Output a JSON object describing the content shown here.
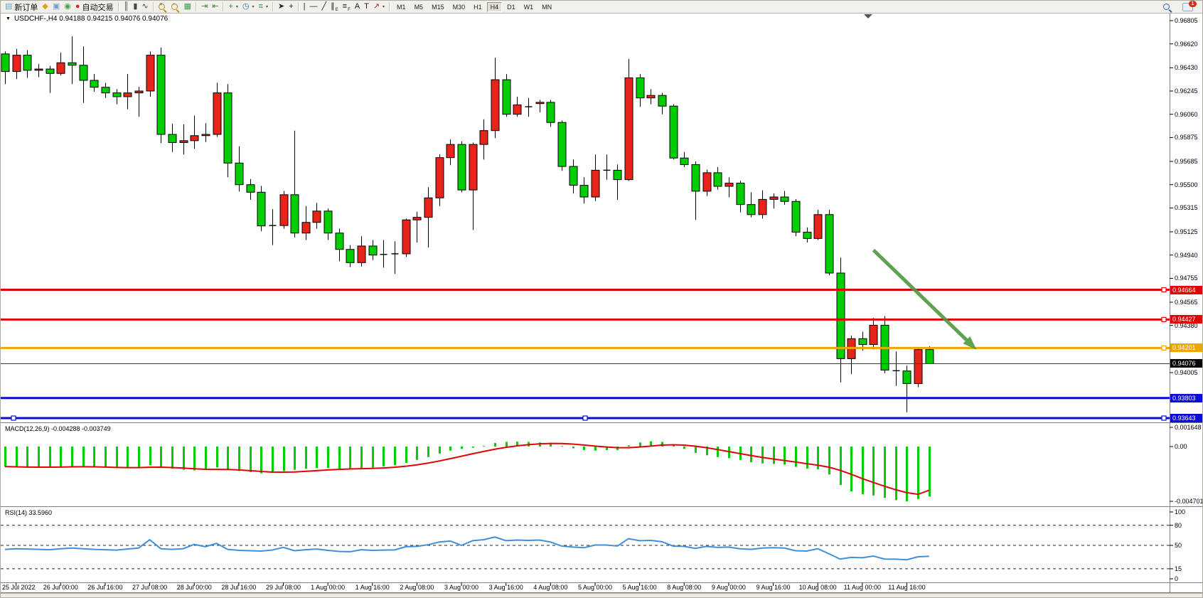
{
  "toolbar": {
    "new_order_label": "新订单",
    "autotrade_label": "自动交易",
    "groups": [
      {
        "items": [
          {
            "name": "new-order-button",
            "icon": "new-order-icon",
            "label": "新订单"
          },
          {
            "name": "history-center-button",
            "icon": "history-icon"
          },
          {
            "name": "market-watch-button",
            "icon": "window-icon"
          },
          {
            "name": "signals-button",
            "icon": "signal-icon"
          },
          {
            "name": "autotrade-button",
            "icon": "autotrade-icon",
            "label": "自动交易"
          }
        ]
      },
      {
        "items": [
          {
            "name": "bar-chart-button",
            "icon": "bars-chart-icon"
          },
          {
            "name": "candle-chart-button",
            "icon": "candles-chart-icon"
          },
          {
            "name": "line-chart-button",
            "icon": "line-chart-icon"
          }
        ]
      },
      {
        "items": [
          {
            "name": "zoom-in-button",
            "icon": "zoom-in-icon"
          },
          {
            "name": "zoom-out-button",
            "icon": "zoom-out-icon"
          },
          {
            "name": "tile-windows-button",
            "icon": "tile-windows-icon"
          }
        ]
      },
      {
        "items": [
          {
            "name": "auto-scroll-button",
            "icon": "auto-scroll-icon"
          },
          {
            "name": "chart-shift-button",
            "icon": "chart-shift-icon"
          }
        ]
      },
      {
        "items": [
          {
            "name": "indicators-button",
            "icon": "indicators-icon",
            "dropdown": true
          },
          {
            "name": "periods-button",
            "icon": "periods-icon",
            "dropdown": true
          },
          {
            "name": "templates-button",
            "icon": "templates-icon",
            "dropdown": true
          }
        ]
      },
      {
        "items": [
          {
            "name": "cursor-button",
            "icon": "cursor-icon"
          },
          {
            "name": "crosshair-button",
            "icon": "crosshair-icon"
          }
        ]
      },
      {
        "items": [
          {
            "name": "vertical-line-button",
            "icon": "vertical-line-icon"
          },
          {
            "name": "horizontal-line-button",
            "icon": "horizontal-line-icon"
          },
          {
            "name": "trendline-button",
            "icon": "trendline-icon"
          },
          {
            "name": "equidistant-channel-button",
            "icon": "channel-icon",
            "sub": "E"
          },
          {
            "name": "fibonacci-button",
            "icon": "fibonacci-icon",
            "sub": "F"
          },
          {
            "name": "text-button",
            "icon": "text-icon"
          },
          {
            "name": "text-label-button",
            "icon": "text-label-icon"
          },
          {
            "name": "arrows-button",
            "icon": "arrows-icon",
            "dropdown": true
          }
        ]
      }
    ],
    "timeframes": [
      "M1",
      "M5",
      "M15",
      "M30",
      "H1",
      "H4",
      "D1",
      "W1",
      "MN"
    ],
    "active_timeframe": "H4",
    "right_items": [
      {
        "name": "search-button",
        "icon": "search-icon"
      },
      {
        "name": "notifications-button",
        "icon": "chat-icon",
        "badge": "1"
      }
    ]
  },
  "chart": {
    "title": "USDCHF-,H4 0.94188 0.94215 0.94076 0.94076",
    "symbol": "USDCHF-",
    "period": "H4",
    "open": "0.94188",
    "high": "0.94215",
    "low": "0.94076",
    "close": "0.94076"
  },
  "chart_data": [
    {
      "type": "candlestick",
      "symbol": "USDCHF-",
      "timeframe": "H4",
      "up_color": "#e8241a",
      "down_color": "#00ce00",
      "x_labels": [
        "25 Jul 2022",
        "26 Jul 00:00",
        "26 Jul 16:00",
        "27 Jul 08:00",
        "28 Jul 00:00",
        "28 Jul 16:00",
        "29 Jul 08:00",
        "1 Aug 00:00",
        "1 Aug 16:00",
        "2 Aug 08:00",
        "3 Aug 00:00",
        "3 Aug 16:00",
        "4 Aug 08:00",
        "5 Aug 00:00",
        "5 Aug 16:00",
        "8 Aug 08:00",
        "9 Aug 00:00",
        "9 Aug 16:00",
        "10 Aug 08:00",
        "11 Aug 00:00",
        "11 Aug 16:00"
      ],
      "y_ticks": [
        0.96805,
        0.9662,
        0.9643,
        0.96245,
        0.9606,
        0.95875,
        0.95685,
        0.955,
        0.95315,
        0.95125,
        0.9494,
        0.94755,
        0.94565,
        0.9438,
        0.94005
      ],
      "ohlc": [
        [
          0.9654,
          0.9656,
          0.963,
          0.964
        ],
        [
          0.964,
          0.9658,
          0.9634,
          0.9653
        ],
        [
          0.9653,
          0.9657,
          0.9635,
          0.9641
        ],
        [
          0.9641,
          0.9646,
          0.96355,
          0.9642
        ],
        [
          0.9642,
          0.96445,
          0.9623,
          0.96385
        ],
        [
          0.96385,
          0.9655,
          0.9637,
          0.9647
        ],
        [
          0.9647,
          0.9668,
          0.963,
          0.9645
        ],
        [
          0.9645,
          0.966,
          0.9615,
          0.9633
        ],
        [
          0.9633,
          0.9638,
          0.9624,
          0.96275
        ],
        [
          0.96275,
          0.9631,
          0.9619,
          0.9623
        ],
        [
          0.9623,
          0.9626,
          0.9614,
          0.962
        ],
        [
          0.962,
          0.9638,
          0.961,
          0.9623
        ],
        [
          0.9623,
          0.9628,
          0.9604,
          0.96245
        ],
        [
          0.96245,
          0.9656,
          0.962,
          0.9653
        ],
        [
          0.9653,
          0.9659,
          0.9583,
          0.959
        ],
        [
          0.959,
          0.95985,
          0.9576,
          0.95835
        ],
        [
          0.95835,
          0.9598,
          0.9574,
          0.9585
        ],
        [
          0.9585,
          0.9605,
          0.95785,
          0.9589
        ],
        [
          0.9589,
          0.9599,
          0.9584,
          0.959
        ],
        [
          0.959,
          0.9631,
          0.9588,
          0.9623
        ],
        [
          0.9623,
          0.963,
          0.9556,
          0.95672
        ],
        [
          0.95672,
          0.95805,
          0.95445,
          0.955
        ],
        [
          0.955,
          0.95545,
          0.9538,
          0.9544
        ],
        [
          0.9544,
          0.9549,
          0.9513,
          0.95172
        ],
        [
          0.95175,
          0.95305,
          0.9502,
          0.95175
        ],
        [
          0.95175,
          0.9545,
          0.9515,
          0.9542
        ],
        [
          0.9542,
          0.9593,
          0.9508,
          0.95115
        ],
        [
          0.95115,
          0.9533,
          0.9506,
          0.952
        ],
        [
          0.952,
          0.95355,
          0.9515,
          0.9529
        ],
        [
          0.9529,
          0.9531,
          0.9506,
          0.95115
        ],
        [
          0.95115,
          0.9515,
          0.9489,
          0.94985
        ],
        [
          0.94985,
          0.9502,
          0.94845,
          0.9488
        ],
        [
          0.9488,
          0.9509,
          0.9485,
          0.95012
        ],
        [
          0.95012,
          0.9506,
          0.949,
          0.9494
        ],
        [
          0.94945,
          0.9506,
          0.9484,
          0.94945
        ],
        [
          0.9495,
          0.9505,
          0.9479,
          0.9495
        ],
        [
          0.9495,
          0.9523,
          0.94925,
          0.9522
        ],
        [
          0.9522,
          0.95285,
          0.9504,
          0.9524
        ],
        [
          0.9524,
          0.9548,
          0.95,
          0.95395
        ],
        [
          0.95395,
          0.9574,
          0.9533,
          0.95715
        ],
        [
          0.95715,
          0.9586,
          0.95655,
          0.9582
        ],
        [
          0.9582,
          0.95845,
          0.9544,
          0.95458
        ],
        [
          0.95458,
          0.95835,
          0.9514,
          0.9582
        ],
        [
          0.9582,
          0.9602,
          0.957,
          0.9593
        ],
        [
          0.9593,
          0.9651,
          0.9587,
          0.96335
        ],
        [
          0.96335,
          0.9638,
          0.9604,
          0.9606
        ],
        [
          0.9606,
          0.962,
          0.9604,
          0.96135
        ],
        [
          0.9612,
          0.9619,
          0.9604,
          0.9612
        ],
        [
          0.96145,
          0.96175,
          0.96075,
          0.96155
        ],
        [
          0.96155,
          0.96175,
          0.9596,
          0.95995
        ],
        [
          0.95995,
          0.9601,
          0.9561,
          0.95645
        ],
        [
          0.95645,
          0.957,
          0.9543,
          0.95495
        ],
        [
          0.95495,
          0.9556,
          0.9535,
          0.95402
        ],
        [
          0.95402,
          0.9574,
          0.9537,
          0.95615
        ],
        [
          0.95615,
          0.9574,
          0.9554,
          0.95615
        ],
        [
          0.95615,
          0.9566,
          0.9538,
          0.9554
        ],
        [
          0.9554,
          0.965,
          0.9553,
          0.9635
        ],
        [
          0.9635,
          0.9638,
          0.9612,
          0.9619
        ],
        [
          0.9619,
          0.9626,
          0.9614,
          0.9621
        ],
        [
          0.9621,
          0.9623,
          0.9606,
          0.96125
        ],
        [
          0.96125,
          0.9614,
          0.957,
          0.95712
        ],
        [
          0.95712,
          0.9576,
          0.9564,
          0.9566
        ],
        [
          0.9566,
          0.95685,
          0.9522,
          0.95448
        ],
        [
          0.95448,
          0.9562,
          0.9541,
          0.95595
        ],
        [
          0.95595,
          0.9564,
          0.9546,
          0.95487
        ],
        [
          0.95487,
          0.9556,
          0.954,
          0.95512
        ],
        [
          0.95512,
          0.9553,
          0.9528,
          0.95342
        ],
        [
          0.95342,
          0.9544,
          0.9524,
          0.95262
        ],
        [
          0.95262,
          0.95455,
          0.9523,
          0.95383
        ],
        [
          0.95383,
          0.9543,
          0.9531,
          0.95402
        ],
        [
          0.95402,
          0.9545,
          0.9534,
          0.95367
        ],
        [
          0.95367,
          0.95385,
          0.9509,
          0.95122
        ],
        [
          0.95122,
          0.9516,
          0.9504,
          0.95072
        ],
        [
          0.95072,
          0.953,
          0.9506,
          0.95262
        ],
        [
          0.95262,
          0.953,
          0.9478,
          0.94797
        ],
        [
          0.94797,
          0.9492,
          0.93927,
          0.94116
        ],
        [
          0.94116,
          0.943,
          0.93993,
          0.94275
        ],
        [
          0.94275,
          0.9433,
          0.9418,
          0.94228
        ],
        [
          0.94228,
          0.9444,
          0.9419,
          0.94382
        ],
        [
          0.94382,
          0.94455,
          0.94,
          0.94025
        ],
        [
          0.9402,
          0.94173,
          0.93899,
          0.9402
        ],
        [
          0.94018,
          0.9406,
          0.9369,
          0.93918
        ],
        [
          0.93918,
          0.942,
          0.93889,
          0.94188
        ],
        [
          0.94188,
          0.94215,
          0.94076,
          0.94076
        ]
      ],
      "horizontal_lines": [
        {
          "price": 0.94664,
          "label": "0.94664",
          "color": "#dd0404",
          "width": 3,
          "handle_right": true
        },
        {
          "price": 0.94427,
          "label": "0.94427",
          "color": "#dd0404",
          "width": 3,
          "handle_right": true
        },
        {
          "price": 0.94201,
          "label": "0.94201",
          "color": "#f0a500",
          "width": 3,
          "handle_right": true
        },
        {
          "price": 0.93803,
          "label": "0.93803",
          "color": "#0b0bd6",
          "width": 3
        },
        {
          "price": 0.93643,
          "label": "0.93643",
          "color": "#0b0bd6",
          "width": 3,
          "selected": true
        }
      ],
      "current_price_line": {
        "price": 0.94076,
        "label": "0.94076",
        "color": "#3c3c3c",
        "label_bg": "#000000"
      },
      "arrow_annotation": {
        "from_bar": 78,
        "from_price": 0.9498,
        "to_bar": 87,
        "to_price": 0.9421,
        "color": "#4e9a40",
        "width": 5
      }
    },
    {
      "type": "macd",
      "label": "MACD(12,26,9) -0.004288 -0.003749",
      "params": [
        12,
        26,
        9
      ],
      "current_macd": -0.004288,
      "current_signal": -0.003749,
      "histogram_color": "#00ce00",
      "signal_color": "#e00404",
      "y_ticks": [
        {
          "value": 0.001648,
          "label": "0.001648"
        },
        {
          "value": 0,
          "label": "0.00"
        },
        {
          "value": -0.004701,
          "label": "-0.004701"
        }
      ],
      "histogram": [
        -0.0017,
        -0.00175,
        -0.00178,
        -0.0018,
        -0.00178,
        -0.00172,
        -0.00168,
        -0.0017,
        -0.00175,
        -0.0018,
        -0.00185,
        -0.00185,
        -0.0018,
        -0.0016,
        -0.00175,
        -0.0019,
        -0.002,
        -0.00205,
        -0.002,
        -0.0018,
        -0.00195,
        -0.0021,
        -0.0022,
        -0.0023,
        -0.00225,
        -0.0021,
        -0.002,
        -0.0019,
        -0.00185,
        -0.00185,
        -0.0019,
        -0.00195,
        -0.0019,
        -0.0018,
        -0.0017,
        -0.0016,
        -0.0014,
        -0.00115,
        -0.0009,
        -0.0006,
        -0.00035,
        -0.0002,
        -0.0001,
        5e-05,
        0.0003,
        0.0004,
        0.00042,
        0.0004,
        0.00035,
        0.00025,
        5e-05,
        -0.00015,
        -0.0003,
        -0.00035,
        -0.0003,
        -0.0003,
        0.0001,
        0.00035,
        0.00045,
        0.0004,
        0.0001,
        -0.0002,
        -0.00055,
        -0.00075,
        -0.0009,
        -0.001,
        -0.00115,
        -0.00135,
        -0.00145,
        -0.0015,
        -0.00155,
        -0.00175,
        -0.0019,
        -0.00195,
        -0.0024,
        -0.0033,
        -0.00385,
        -0.0041,
        -0.0042,
        -0.0044,
        -0.0046,
        -0.0047,
        -0.0045,
        -0.004288
      ],
      "signal": [
        -0.00172,
        -0.00174,
        -0.00176,
        -0.00177,
        -0.00177,
        -0.00176,
        -0.00174,
        -0.00173,
        -0.00174,
        -0.00176,
        -0.00179,
        -0.00181,
        -0.00181,
        -0.00178,
        -0.00177,
        -0.0018,
        -0.00185,
        -0.00191,
        -0.00195,
        -0.00196,
        -0.00197,
        -0.00201,
        -0.00207,
        -0.00214,
        -0.00219,
        -0.0022,
        -0.00218,
        -0.00213,
        -0.00207,
        -0.00201,
        -0.00196,
        -0.00192,
        -0.0019,
        -0.00188,
        -0.00184,
        -0.00178,
        -0.00169,
        -0.00157,
        -0.00142,
        -0.00124,
        -0.00104,
        -0.00083,
        -0.00062,
        -0.00042,
        -0.00023,
        -7e-05,
        6e-05,
        0.00016,
        0.00023,
        0.00027,
        0.00026,
        0.00021,
        0.00013,
        4e-05,
        -4e-05,
        -0.0001,
        -0.0001,
        -4e-05,
        4e-05,
        0.00012,
        0.00015,
        0.00012,
        3e-05,
        -0.0001,
        -0.00026,
        -0.00043,
        -0.0006,
        -0.00077,
        -0.00093,
        -0.00107,
        -0.0012,
        -0.00133,
        -0.00147,
        -0.0016,
        -0.00177,
        -0.00204,
        -0.00238,
        -0.00275,
        -0.00309,
        -0.00341,
        -0.00371,
        -0.00396,
        -0.0041,
        -0.003749
      ]
    },
    {
      "type": "rsi",
      "label": "RSI(14) 33.5960",
      "period": 14,
      "current": 33.596,
      "line_color": "#3f8fd9",
      "levels": [
        80,
        50,
        15
      ],
      "y_ticks": [
        {
          "value": 100,
          "label": "100"
        },
        {
          "value": 80,
          "label": "80"
        },
        {
          "value": 50,
          "label": "50"
        },
        {
          "value": 15,
          "label": "15"
        },
        {
          "value": 0,
          "label": "0"
        }
      ],
      "values": [
        44,
        45,
        44.5,
        44,
        43.5,
        45,
        46,
        45,
        44,
        43.5,
        43,
        44.5,
        46,
        58.5,
        45,
        44,
        45,
        51.5,
        48,
        53,
        44,
        42.5,
        42,
        41.5,
        43,
        47,
        42,
        43.5,
        44.5,
        42.5,
        41,
        40.5,
        43.5,
        42.5,
        43,
        43.2,
        48,
        48.5,
        51,
        55,
        56.5,
        50,
        57,
        58.5,
        62.5,
        57,
        58,
        57.5,
        58,
        55,
        49,
        47.5,
        46.5,
        50.5,
        50.5,
        49,
        60,
        57,
        57.5,
        55.5,
        49,
        48.5,
        45.5,
        48.5,
        47,
        47.5,
        45,
        44,
        46,
        46.5,
        46,
        42,
        41.5,
        45,
        37.5,
        29.5,
        32,
        31.5,
        34,
        29.5,
        29.4,
        28.5,
        33,
        33.596
      ]
    }
  ]
}
